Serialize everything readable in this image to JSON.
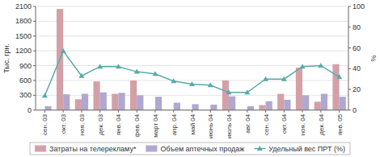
{
  "chart_data": {
    "type": "bar",
    "categories": [
      "сен. 03",
      "окт. 03",
      "ноя. 03",
      "дек. 03",
      "янв. 04",
      "фев. 04",
      "март 04",
      "апр. 04",
      "май 04",
      "июнь 04",
      "июль 04",
      "авг. 04",
      "сен. 04",
      "окт. 04",
      "ноя. 04",
      "дек. 04",
      "янв. 05"
    ],
    "series": [
      {
        "name": "Затраты на телерекламу*",
        "color": "#d4a0a8",
        "values": [
          0,
          2050,
          220,
          580,
          330,
          600,
          0,
          0,
          0,
          0,
          600,
          0,
          100,
          330,
          860,
          170,
          930
        ]
      },
      {
        "name": "Объем аптечных продаж",
        "color": "#b0a8d0",
        "values": [
          80,
          320,
          330,
          360,
          350,
          300,
          270,
          150,
          120,
          110,
          280,
          80,
          180,
          210,
          300,
          330,
          270
        ]
      },
      {
        "name": "Удельный вес ПРТ (%)",
        "type": "line",
        "axis": "y2",
        "color": "#5aaaaa",
        "marker": "triangle",
        "values": [
          14,
          57,
          33,
          42,
          42,
          37,
          35,
          28,
          25,
          24,
          17,
          17,
          30,
          30,
          42,
          43,
          32
        ]
      }
    ],
    "ylabel": "Тыс. грн.",
    "y2label": "%",
    "ylim": [
      0,
      2100
    ],
    "yticks": [
      0,
      300,
      600,
      900,
      1200,
      1500,
      1800,
      2100
    ],
    "y2lim": [
      0,
      100
    ],
    "y2ticks": [
      0,
      20,
      40,
      60,
      80,
      100
    ],
    "grid": true,
    "legend": "bottom"
  }
}
